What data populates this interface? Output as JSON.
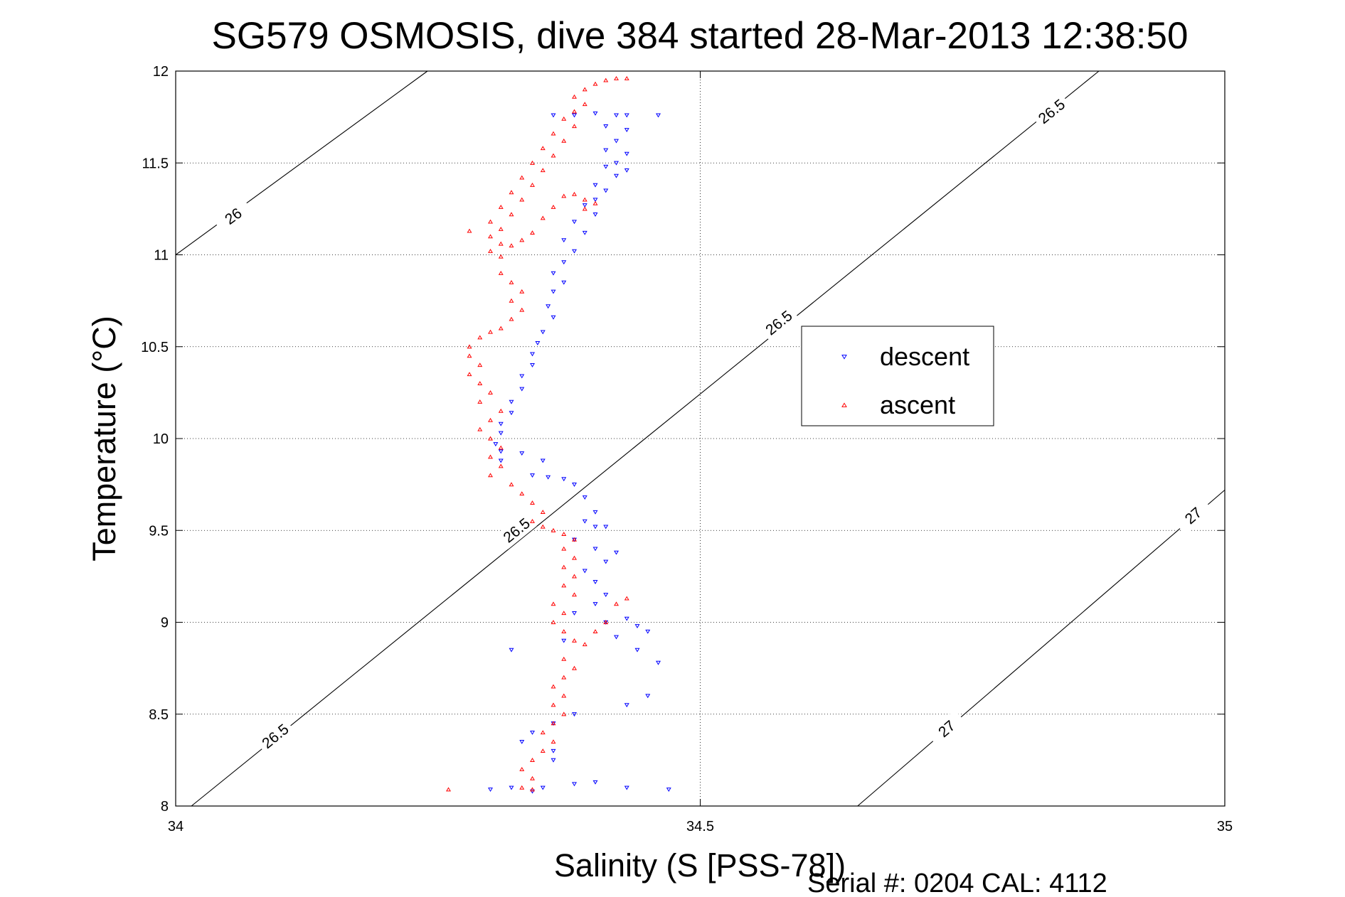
{
  "chart_data": {
    "type": "scatter",
    "title": "SG579 OSMOSIS, dive 384 started 28-Mar-2013 12:38:50",
    "xlabel": "Salinity (S [PSS-78])",
    "ylabel": "Temperature (°C)",
    "xlim": [
      34,
      35
    ],
    "ylim": [
      8,
      12
    ],
    "xticks": [
      "34",
      "34.5",
      "35"
    ],
    "yticks": [
      "8",
      "8.5",
      "9",
      "9.5",
      "10",
      "10.5",
      "11",
      "11.5",
      "12"
    ],
    "grid": "dotted",
    "legend_position": "center-right",
    "footer": "Serial #: 0204  CAL: 4112",
    "colors": {
      "descent": "#0000ff",
      "ascent": "#ff0000",
      "contour": "#000000"
    },
    "contours": [
      {
        "label": "26",
        "points": [
          [
            34.0,
            11.0
          ],
          [
            34.24,
            12.0
          ]
        ],
        "label_at": [
          [
            34.055,
            11.21
          ]
        ]
      },
      {
        "label": "26.5",
        "points": [
          [
            34.015,
            8.0
          ],
          [
            34.88,
            12.0
          ]
        ],
        "label_at": [
          [
            34.095,
            8.38
          ],
          [
            34.325,
            9.5
          ],
          [
            34.575,
            10.63
          ],
          [
            34.835,
            11.78
          ]
        ]
      },
      {
        "label": "27",
        "points": [
          [
            34.65,
            8.0
          ],
          [
            35.0,
            9.72
          ]
        ],
        "label_at": [
          [
            34.735,
            8.42
          ],
          [
            34.97,
            9.58
          ]
        ]
      }
    ],
    "series": [
      {
        "name": "descent",
        "marker": "triangle-down",
        "points": [
          [
            34.36,
            11.76
          ],
          [
            34.38,
            11.76
          ],
          [
            34.4,
            11.77
          ],
          [
            34.42,
            11.76
          ],
          [
            34.43,
            11.76
          ],
          [
            34.46,
            11.76
          ],
          [
            34.41,
            11.7
          ],
          [
            34.43,
            11.68
          ],
          [
            34.42,
            11.62
          ],
          [
            34.41,
            11.57
          ],
          [
            34.43,
            11.55
          ],
          [
            34.42,
            11.5
          ],
          [
            34.41,
            11.48
          ],
          [
            34.43,
            11.46
          ],
          [
            34.42,
            11.43
          ],
          [
            34.4,
            11.38
          ],
          [
            34.41,
            11.35
          ],
          [
            34.4,
            11.3
          ],
          [
            34.39,
            11.27
          ],
          [
            34.4,
            11.22
          ],
          [
            34.38,
            11.18
          ],
          [
            34.39,
            11.12
          ],
          [
            34.37,
            11.08
          ],
          [
            34.38,
            11.02
          ],
          [
            34.37,
            10.96
          ],
          [
            34.36,
            10.9
          ],
          [
            34.37,
            10.85
          ],
          [
            34.36,
            10.8
          ],
          [
            34.355,
            10.72
          ],
          [
            34.36,
            10.66
          ],
          [
            34.35,
            10.58
          ],
          [
            34.345,
            10.52
          ],
          [
            34.34,
            10.46
          ],
          [
            34.34,
            10.4
          ],
          [
            34.33,
            10.34
          ],
          [
            34.33,
            10.27
          ],
          [
            34.32,
            10.2
          ],
          [
            34.32,
            10.14
          ],
          [
            34.31,
            10.08
          ],
          [
            34.31,
            10.03
          ],
          [
            34.305,
            9.97
          ],
          [
            34.31,
            9.93
          ],
          [
            34.31,
            9.88
          ],
          [
            34.33,
            9.92
          ],
          [
            34.35,
            9.88
          ],
          [
            34.34,
            9.8
          ],
          [
            34.355,
            9.79
          ],
          [
            34.37,
            9.78
          ],
          [
            34.38,
            9.75
          ],
          [
            34.39,
            9.68
          ],
          [
            34.4,
            9.6
          ],
          [
            34.39,
            9.55
          ],
          [
            34.4,
            9.52
          ],
          [
            34.41,
            9.52
          ],
          [
            34.38,
            9.45
          ],
          [
            34.4,
            9.4
          ],
          [
            34.42,
            9.38
          ],
          [
            34.41,
            9.33
          ],
          [
            34.39,
            9.28
          ],
          [
            34.4,
            9.22
          ],
          [
            34.41,
            9.15
          ],
          [
            34.4,
            9.1
          ],
          [
            34.38,
            9.05
          ],
          [
            34.41,
            9.0
          ],
          [
            34.43,
            9.02
          ],
          [
            34.44,
            8.98
          ],
          [
            34.45,
            8.95
          ],
          [
            34.42,
            8.92
          ],
          [
            34.37,
            8.9
          ],
          [
            34.44,
            8.85
          ],
          [
            34.46,
            8.78
          ],
          [
            34.45,
            8.6
          ],
          [
            34.43,
            8.55
          ],
          [
            34.38,
            8.5
          ],
          [
            34.36,
            8.45
          ],
          [
            34.34,
            8.4
          ],
          [
            34.33,
            8.35
          ],
          [
            34.36,
            8.3
          ],
          [
            34.36,
            8.25
          ],
          [
            34.32,
            8.85
          ],
          [
            34.32,
            8.1
          ],
          [
            34.34,
            8.08
          ],
          [
            34.35,
            8.1
          ],
          [
            34.3,
            8.09
          ],
          [
            34.43,
            8.1
          ],
          [
            34.47,
            8.09
          ],
          [
            34.38,
            8.12
          ],
          [
            34.4,
            8.13
          ]
        ]
      },
      {
        "name": "ascent",
        "marker": "triangle-up",
        "points": [
          [
            34.42,
            11.96
          ],
          [
            34.43,
            11.96
          ],
          [
            34.41,
            11.95
          ],
          [
            34.4,
            11.93
          ],
          [
            34.39,
            11.9
          ],
          [
            34.38,
            11.86
          ],
          [
            34.39,
            11.82
          ],
          [
            34.38,
            11.78
          ],
          [
            34.37,
            11.74
          ],
          [
            34.38,
            11.7
          ],
          [
            34.36,
            11.66
          ],
          [
            34.37,
            11.62
          ],
          [
            34.35,
            11.58
          ],
          [
            34.36,
            11.54
          ],
          [
            34.34,
            11.5
          ],
          [
            34.35,
            11.46
          ],
          [
            34.33,
            11.42
          ],
          [
            34.34,
            11.38
          ],
          [
            34.32,
            11.34
          ],
          [
            34.33,
            11.3
          ],
          [
            34.31,
            11.26
          ],
          [
            34.32,
            11.22
          ],
          [
            34.3,
            11.18
          ],
          [
            34.31,
            11.14
          ],
          [
            34.3,
            11.1
          ],
          [
            34.31,
            11.06
          ],
          [
            34.3,
            11.02
          ],
          [
            34.31,
            10.99
          ],
          [
            34.32,
            11.05
          ],
          [
            34.33,
            11.08
          ],
          [
            34.34,
            11.12
          ],
          [
            34.35,
            11.2
          ],
          [
            34.36,
            11.26
          ],
          [
            34.37,
            11.32
          ],
          [
            34.38,
            11.33
          ],
          [
            34.39,
            11.3
          ],
          [
            34.4,
            11.28
          ],
          [
            34.39,
            11.25
          ],
          [
            34.31,
            10.9
          ],
          [
            34.32,
            10.85
          ],
          [
            34.33,
            10.8
          ],
          [
            34.32,
            10.75
          ],
          [
            34.33,
            10.7
          ],
          [
            34.32,
            10.65
          ],
          [
            34.31,
            10.6
          ],
          [
            34.29,
            10.55
          ],
          [
            34.3,
            10.58
          ],
          [
            34.28,
            10.5
          ],
          [
            34.28,
            10.45
          ],
          [
            34.29,
            10.4
          ],
          [
            34.28,
            10.35
          ],
          [
            34.29,
            10.3
          ],
          [
            34.3,
            10.25
          ],
          [
            34.29,
            10.2
          ],
          [
            34.31,
            10.15
          ],
          [
            34.3,
            10.1
          ],
          [
            34.29,
            10.05
          ],
          [
            34.3,
            10.0
          ],
          [
            34.31,
            9.95
          ],
          [
            34.3,
            9.9
          ],
          [
            34.31,
            9.85
          ],
          [
            34.3,
            9.8
          ],
          [
            34.32,
            9.75
          ],
          [
            34.33,
            9.7
          ],
          [
            34.34,
            9.65
          ],
          [
            34.35,
            9.6
          ],
          [
            34.34,
            9.55
          ],
          [
            34.35,
            9.52
          ],
          [
            34.36,
            9.5
          ],
          [
            34.37,
            9.48
          ],
          [
            34.38,
            9.45
          ],
          [
            34.37,
            9.4
          ],
          [
            34.38,
            9.35
          ],
          [
            34.37,
            9.3
          ],
          [
            34.38,
            9.25
          ],
          [
            34.37,
            9.2
          ],
          [
            34.38,
            9.15
          ],
          [
            34.36,
            9.1
          ],
          [
            34.37,
            9.05
          ],
          [
            34.36,
            9.0
          ],
          [
            34.37,
            8.95
          ],
          [
            34.38,
            8.9
          ],
          [
            34.4,
            8.95
          ],
          [
            34.41,
            9.0
          ],
          [
            34.42,
            9.1
          ],
          [
            34.43,
            9.13
          ],
          [
            34.39,
            8.88
          ],
          [
            34.37,
            8.8
          ],
          [
            34.38,
            8.75
          ],
          [
            34.37,
            8.7
          ],
          [
            34.36,
            8.65
          ],
          [
            34.37,
            8.6
          ],
          [
            34.36,
            8.55
          ],
          [
            34.37,
            8.5
          ],
          [
            34.36,
            8.45
          ],
          [
            34.35,
            8.4
          ],
          [
            34.36,
            8.35
          ],
          [
            34.35,
            8.3
          ],
          [
            34.34,
            8.25
          ],
          [
            34.33,
            8.2
          ],
          [
            34.34,
            8.15
          ],
          [
            34.33,
            8.1
          ],
          [
            34.34,
            8.09
          ],
          [
            34.26,
            8.09
          ],
          [
            34.28,
            11.13
          ]
        ]
      }
    ]
  }
}
